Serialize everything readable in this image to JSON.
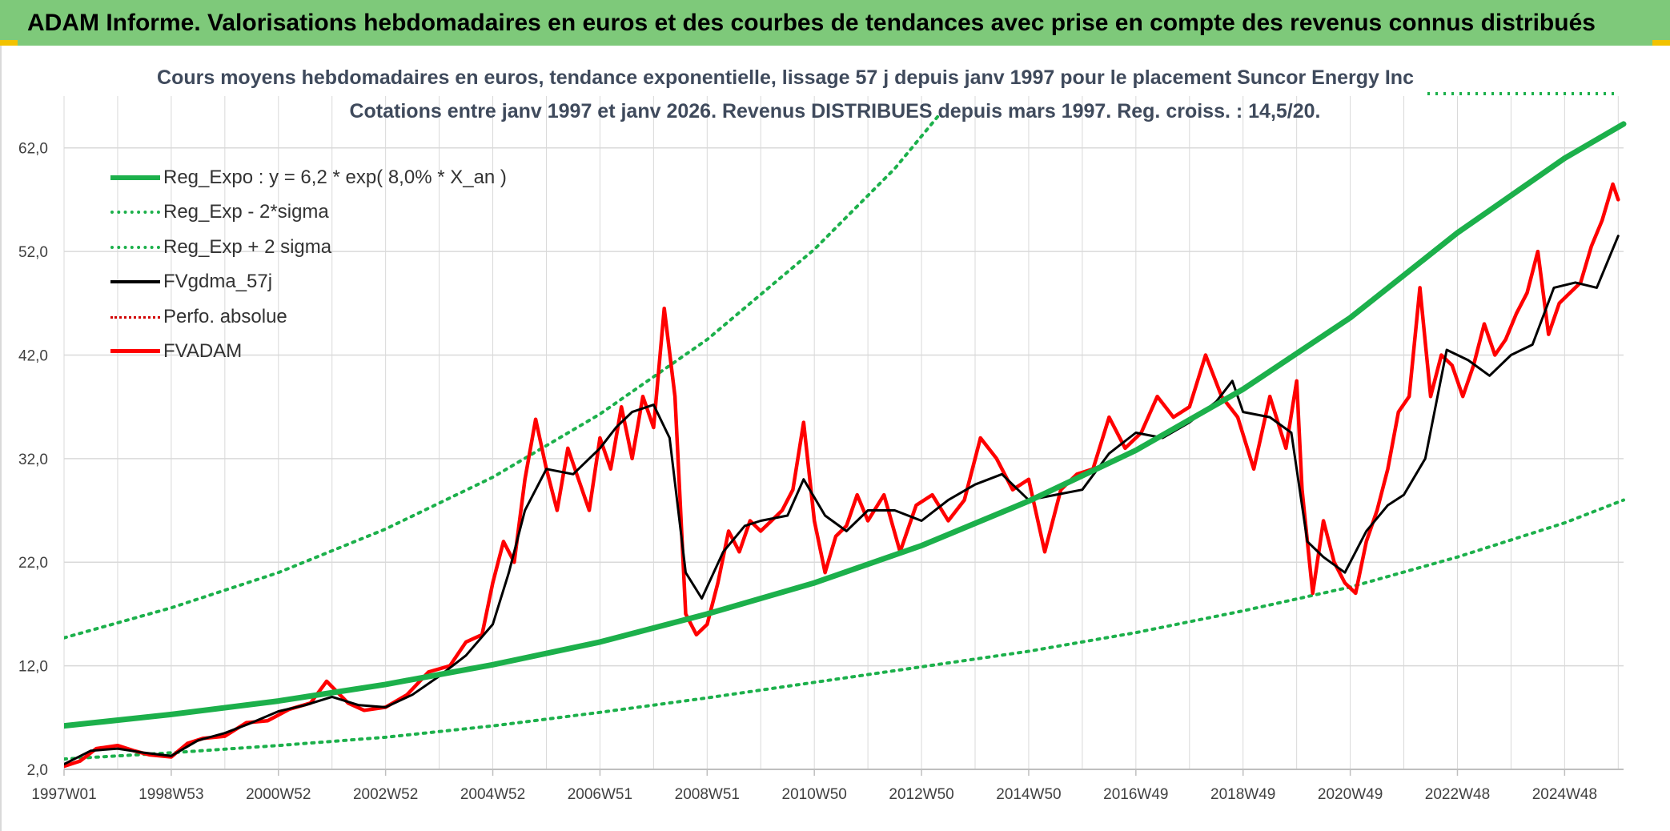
{
  "header": {
    "title": "ADAM Informe. Valorisations hebdomadaires en euros et des courbes de tendances avec prise en compte des revenus connus distribués"
  },
  "colors": {
    "header_bg": "#7ec97a",
    "reg_expo": "#1cb04b",
    "fvgdma": "#000000",
    "fvadam": "#ff0000",
    "perfo": "#d10000",
    "grid": "#d9d9d9"
  },
  "chart_data": {
    "type": "line",
    "title": "Cours moyens hebdomadaires en euros, tendance exponentielle, lissage 57 j depuis janv 1997 pour le placement Suncor Energy Inc",
    "subtitle": "Cotations entre janv 1997 et janv 2026. Revenus DISTRIBUES depuis mars 1997. Reg. croiss. : 14,5/20.",
    "xlabel": "",
    "ylabel": "",
    "xlim": [
      1997.0,
      2026.1
    ],
    "ylim": [
      2.0,
      67.0
    ],
    "yticks": [
      2.0,
      12.0,
      22.0,
      32.0,
      42.0,
      52.0,
      62.0
    ],
    "ytick_labels": [
      "2,0",
      "12,0",
      "22,0",
      "32,0",
      "42,0",
      "52,0",
      "62,0"
    ],
    "xticks": [
      1997.0,
      1999.0,
      2001.0,
      2003.0,
      2005.0,
      2007.0,
      2009.0,
      2011.0,
      2013.0,
      2015.0,
      2017.0,
      2019.0,
      2021.0,
      2023.0,
      2025.0
    ],
    "xtick_labels": [
      "1997W01",
      "1998W53",
      "2000W52",
      "2002W52",
      "2004W52",
      "2006W51",
      "2008W51",
      "2010W50",
      "2012W50",
      "2014W50",
      "2016W49",
      "2018W49",
      "2020W49",
      "2022W48",
      "2024W48"
    ],
    "legend": [
      {
        "key": "reg_expo",
        "label": "Reg_Expo : y = 6,2 * exp( 8,0% *  X_an )",
        "style": "solid-green"
      },
      {
        "key": "reg_minus",
        "label": "Reg_Exp - 2*sigma",
        "style": "dot-green"
      },
      {
        "key": "reg_plus",
        "label": "Reg_Exp + 2 sigma",
        "style": "dot-green"
      },
      {
        "key": "fvgdma",
        "label": "FVgdma_57j",
        "style": "solid-black"
      },
      {
        "key": "perfo",
        "label": "Perfo. absolue",
        "style": "dot-red"
      },
      {
        "key": "fvadam",
        "label": "FVADAM",
        "style": "solid-red"
      }
    ],
    "legend_position": "top-left",
    "series": [
      {
        "name": "Reg_Expo",
        "x": [
          1997.0,
          1999.0,
          2001.0,
          2003.0,
          2005.0,
          2007.0,
          2009.0,
          2011.0,
          2013.0,
          2015.0,
          2017.0,
          2019.0,
          2021.0,
          2023.0,
          2025.0,
          2026.1
        ],
        "values": [
          6.2,
          7.3,
          8.6,
          10.2,
          12.1,
          14.3,
          17.0,
          20.0,
          23.6,
          27.9,
          32.8,
          38.7,
          45.6,
          53.8,
          61.0,
          64.3
        ]
      },
      {
        "name": "Reg_Exp - 2*sigma",
        "x": [
          1997.0,
          1999.0,
          2001.0,
          2003.0,
          2005.0,
          2007.0,
          2009.0,
          2011.0,
          2013.0,
          2015.0,
          2017.0,
          2019.0,
          2021.0,
          2023.0,
          2025.0,
          2026.1
        ],
        "values": [
          3.0,
          3.6,
          4.3,
          5.1,
          6.2,
          7.5,
          8.9,
          10.4,
          11.9,
          13.4,
          15.2,
          17.3,
          19.6,
          22.5,
          25.8,
          28.0
        ]
      },
      {
        "name": "Reg_Exp + 2 sigma",
        "x": [
          1997.0,
          1999.0,
          2001.0,
          2003.0,
          2005.0,
          2007.0,
          2009.0,
          2011.0,
          2012.5,
          2013.3
        ],
        "values": [
          14.7,
          17.6,
          21.0,
          25.2,
          30.2,
          36.3,
          43.5,
          52.2,
          60.0,
          65.0
        ]
      },
      {
        "name": "FVgdma_57j",
        "x": [
          1997.0,
          1997.5,
          1998.0,
          1998.5,
          1999.0,
          1999.5,
          2000.0,
          2000.5,
          2001.0,
          2001.5,
          2002.0,
          2002.5,
          2003.0,
          2003.5,
          2004.0,
          2004.5,
          2005.0,
          2005.3,
          2005.6,
          2006.0,
          2006.5,
          2007.0,
          2007.3,
          2007.6,
          2008.0,
          2008.3,
          2008.6,
          2008.9,
          2009.3,
          2009.7,
          2010.0,
          2010.5,
          2010.8,
          2011.2,
          2011.6,
          2012.0,
          2012.5,
          2013.0,
          2013.5,
          2014.0,
          2014.5,
          2015.0,
          2015.5,
          2016.0,
          2016.5,
          2017.0,
          2017.5,
          2018.0,
          2018.5,
          2018.8,
          2019.0,
          2019.5,
          2019.9,
          2020.2,
          2020.5,
          2020.9,
          2021.3,
          2021.7,
          2022.0,
          2022.4,
          2022.8,
          2023.2,
          2023.6,
          2024.0,
          2024.4,
          2024.8,
          2025.2,
          2025.6,
          2026.0
        ],
        "values": [
          2.5,
          3.8,
          4.0,
          3.6,
          3.3,
          4.8,
          5.5,
          6.5,
          7.6,
          8.2,
          9.0,
          8.2,
          8.0,
          9.2,
          11.0,
          13.0,
          16.0,
          21.0,
          27.0,
          31.0,
          30.5,
          33.0,
          35.0,
          36.5,
          37.2,
          34.0,
          21.0,
          18.5,
          23.0,
          25.5,
          26.0,
          26.5,
          30.0,
          26.5,
          25.0,
          27.0,
          27.0,
          26.0,
          28.0,
          29.5,
          30.5,
          28.0,
          28.5,
          29.0,
          32.5,
          34.5,
          34.0,
          35.5,
          37.5,
          39.5,
          36.5,
          36.0,
          34.5,
          24.0,
          22.5,
          21.0,
          25.0,
          27.5,
          28.5,
          32.0,
          42.5,
          41.5,
          40.0,
          42.0,
          43.0,
          48.5,
          49.0,
          48.5,
          53.5
        ]
      },
      {
        "name": "FVADAM",
        "x": [
          1997.0,
          1997.3,
          1997.6,
          1998.0,
          1998.3,
          1998.6,
          1999.0,
          1999.3,
          1999.6,
          2000.0,
          2000.4,
          2000.8,
          2001.2,
          2001.6,
          2001.9,
          2002.3,
          2002.6,
          2003.0,
          2003.4,
          2003.8,
          2004.2,
          2004.5,
          2004.8,
          2005.0,
          2005.2,
          2005.4,
          2005.6,
          2005.8,
          2006.0,
          2006.2,
          2006.4,
          2006.6,
          2006.8,
          2007.0,
          2007.2,
          2007.4,
          2007.6,
          2007.8,
          2008.0,
          2008.2,
          2008.4,
          2008.6,
          2008.8,
          2009.0,
          2009.2,
          2009.4,
          2009.6,
          2009.8,
          2010.0,
          2010.2,
          2010.4,
          2010.6,
          2010.8,
          2011.0,
          2011.2,
          2011.4,
          2011.6,
          2011.8,
          2012.0,
          2012.3,
          2012.6,
          2012.9,
          2013.2,
          2013.5,
          2013.8,
          2014.1,
          2014.4,
          2014.7,
          2015.0,
          2015.3,
          2015.6,
          2015.9,
          2016.2,
          2016.5,
          2016.8,
          2017.1,
          2017.4,
          2017.7,
          2018.0,
          2018.3,
          2018.6,
          2018.9,
          2019.2,
          2019.5,
          2019.8,
          2020.0,
          2020.1,
          2020.3,
          2020.5,
          2020.7,
          2020.9,
          2021.1,
          2021.3,
          2021.5,
          2021.7,
          2021.9,
          2022.1,
          2022.3,
          2022.5,
          2022.7,
          2022.9,
          2023.1,
          2023.3,
          2023.5,
          2023.7,
          2023.9,
          2024.1,
          2024.3,
          2024.5,
          2024.7,
          2024.9,
          2025.1,
          2025.3,
          2025.5,
          2025.7,
          2025.9,
          2026.0
        ],
        "values": [
          2.3,
          2.8,
          4.0,
          4.3,
          3.8,
          3.4,
          3.2,
          4.5,
          5.0,
          5.2,
          6.5,
          6.7,
          7.8,
          8.4,
          10.5,
          8.4,
          7.7,
          8.0,
          9.2,
          11.4,
          12.0,
          14.3,
          15.0,
          20.0,
          24.0,
          22.0,
          30.0,
          35.8,
          31.0,
          27.0,
          33.0,
          30.0,
          27.0,
          34.0,
          31.0,
          37.0,
          32.0,
          38.0,
          35.0,
          46.5,
          38.0,
          17.0,
          15.0,
          16.0,
          20.0,
          25.0,
          23.0,
          26.0,
          25.0,
          26.0,
          27.0,
          29.0,
          35.5,
          26.0,
          21.0,
          24.5,
          25.5,
          28.5,
          26.0,
          28.5,
          23.0,
          27.5,
          28.5,
          26.0,
          28.0,
          34.0,
          32.0,
          29.0,
          30.0,
          23.0,
          29.0,
          30.5,
          31.0,
          36.0,
          33.0,
          34.5,
          38.0,
          36.0,
          37.0,
          42.0,
          38.0,
          36.0,
          31.0,
          38.0,
          33.0,
          39.5,
          29.0,
          19.0,
          26.0,
          22.0,
          20.0,
          19.0,
          24.0,
          27.0,
          31.0,
          36.5,
          38.0,
          48.5,
          38.0,
          42.0,
          41.0,
          38.0,
          41.0,
          45.0,
          42.0,
          43.5,
          46.0,
          48.0,
          52.0,
          44.0,
          47.0,
          48.0,
          49.0,
          52.5,
          55.0,
          58.5,
          57.0
        ]
      }
    ]
  }
}
